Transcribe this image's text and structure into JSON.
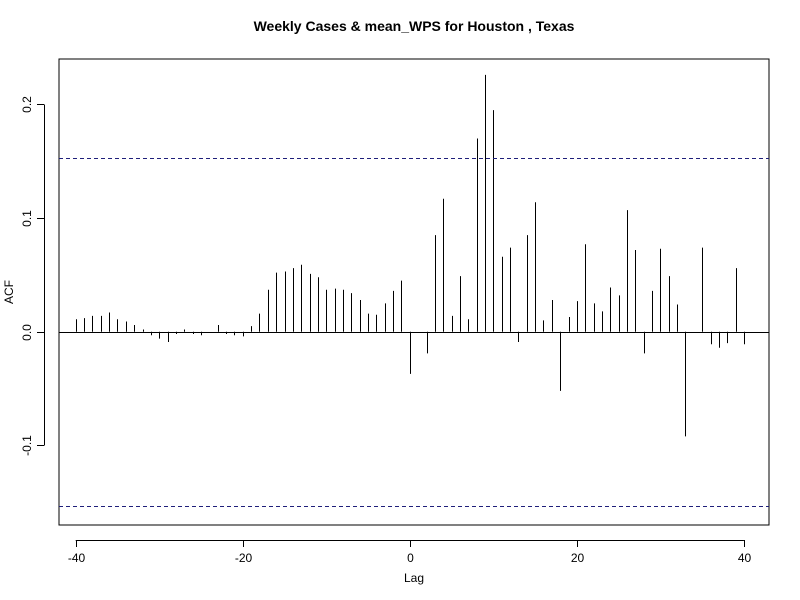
{
  "chart_data": {
    "type": "bar",
    "title": "Weekly Cases & mean_WPS for Houston , Texas",
    "xlabel": "Lag",
    "ylabel": "ACF",
    "xlim": [
      -42,
      43
    ],
    "ylim": [
      -0.17,
      0.24
    ],
    "x_ticks": [
      -40,
      -20,
      0,
      20,
      40
    ],
    "y_ticks": [
      -0.1,
      0.0,
      0.1,
      0.2
    ],
    "y_tick_labels": [
      "-0.1",
      "0.0",
      "0.1",
      "0.2"
    ],
    "x_tick_labels": [
      "-40",
      "-20",
      "0",
      "20",
      "40"
    ],
    "confidence_band": 0.153,
    "baseline": 0,
    "series": [
      {
        "x": [
          -40,
          -39,
          -38,
          -37,
          -36,
          -35,
          -34,
          -33,
          -32,
          -31,
          -30,
          -29,
          -28,
          -27,
          -26,
          -25,
          -24,
          -23,
          -22,
          -21,
          -20,
          -19,
          -18,
          -17,
          -16,
          -15,
          -14,
          -13,
          -12,
          -11,
          -10,
          -9,
          -8,
          -7,
          -6,
          -5,
          -4,
          -3,
          -2,
          -1,
          0,
          1,
          2,
          3,
          4,
          5,
          6,
          7,
          8,
          9,
          10,
          11,
          12,
          13,
          14,
          15,
          16,
          17,
          18,
          19,
          20,
          21,
          22,
          23,
          24,
          25,
          26,
          27,
          28,
          29,
          30,
          31,
          32,
          33,
          34,
          35,
          36,
          37,
          38,
          39,
          40
        ],
        "values": [
          0.011,
          0.012,
          0.014,
          0.014,
          0.017,
          0.011,
          0.009,
          0.006,
          0.002,
          -0.003,
          -0.006,
          -0.009,
          -0.002,
          0.002,
          -0.002,
          -0.003,
          0.0,
          0.006,
          -0.002,
          -0.003,
          -0.004,
          0.005,
          0.016,
          0.037,
          0.052,
          0.053,
          0.056,
          0.059,
          0.051,
          0.048,
          0.037,
          0.038,
          0.037,
          0.034,
          0.028,
          0.016,
          0.015,
          0.025,
          0.036,
          0.045,
          -0.037,
          0.0,
          -0.019,
          0.085,
          0.117,
          0.014,
          0.049,
          0.011,
          0.17,
          0.226,
          0.195,
          0.066,
          0.074,
          -0.009,
          0.085,
          0.114,
          0.01,
          0.028,
          -0.052,
          0.013,
          0.027,
          0.077,
          0.025,
          0.018,
          0.039,
          0.032,
          0.107,
          0.072,
          -0.019,
          0.036,
          0.073,
          0.049,
          0.024,
          -0.092,
          0.0,
          0.074,
          -0.011,
          -0.014,
          -0.01,
          0.056,
          -0.011
        ]
      }
    ],
    "colors": {
      "bars": "#000000",
      "band": "#1f1f7a",
      "axis": "#000000",
      "background": "#ffffff"
    }
  }
}
